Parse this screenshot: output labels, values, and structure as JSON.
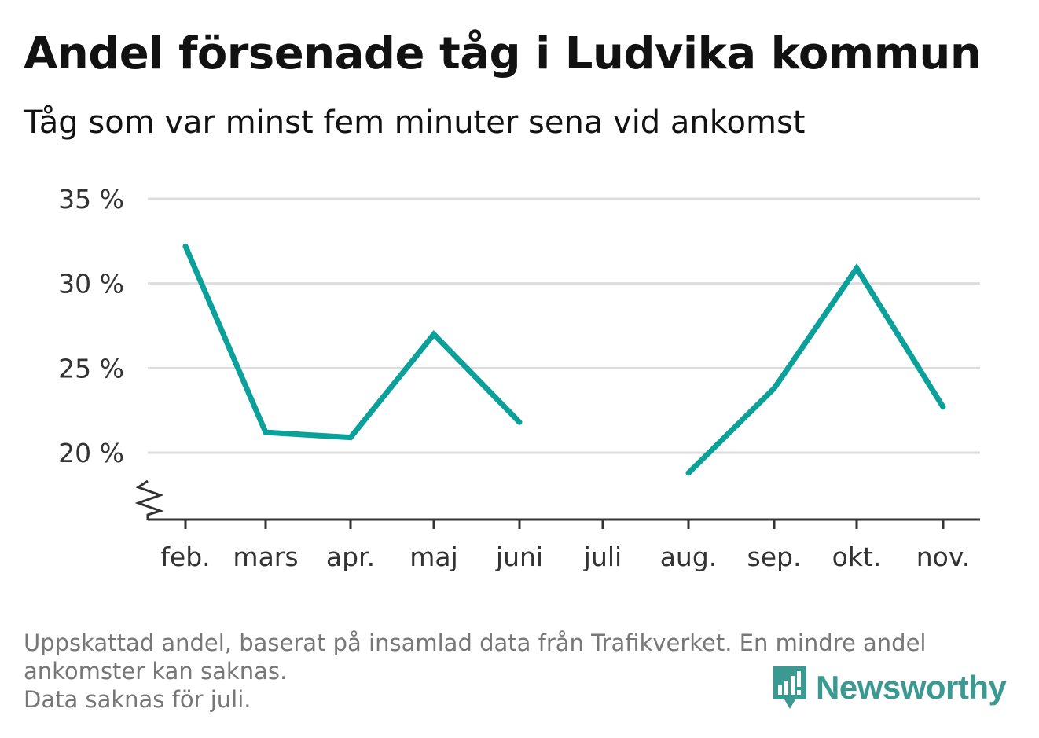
{
  "title": "Andel försenade tåg i Ludvika kommun",
  "subtitle": "Tåg som var minst fem minuter sena vid ankomst",
  "footnote": [
    "Uppskattad andel, baserat på insamlad data från Trafikverket. En mindre andel",
    "ankomster kan saknas.",
    "Data saknas för juli."
  ],
  "brand": {
    "name": "Newsworthy",
    "icon": "newsworthy-logo-icon",
    "color": "#3a9a92"
  },
  "chart_data": {
    "type": "line",
    "title": "Andel försenade tåg i Ludvika kommun",
    "subtitle": "Tåg som var minst fem minuter sena vid ankomst",
    "categories": [
      "feb.",
      "mars",
      "apr.",
      "maj",
      "juni",
      "juli",
      "aug.",
      "sep.",
      "okt.",
      "nov."
    ],
    "series": [
      {
        "values": [
          32.2,
          21.2,
          20.9,
          27.0,
          21.8,
          null,
          18.8,
          23.8,
          30.9,
          22.7
        ],
        "color": "#0ba09a"
      }
    ],
    "y_ticks": [
      20,
      25,
      30,
      35
    ],
    "y_tick_labels": [
      "20 %",
      "25 %",
      "30 %",
      "35 %"
    ],
    "ylim": [
      16,
      35
    ],
    "y_axis_break": true,
    "grid": true,
    "legend": "none",
    "xlabel": "",
    "ylabel": ""
  }
}
